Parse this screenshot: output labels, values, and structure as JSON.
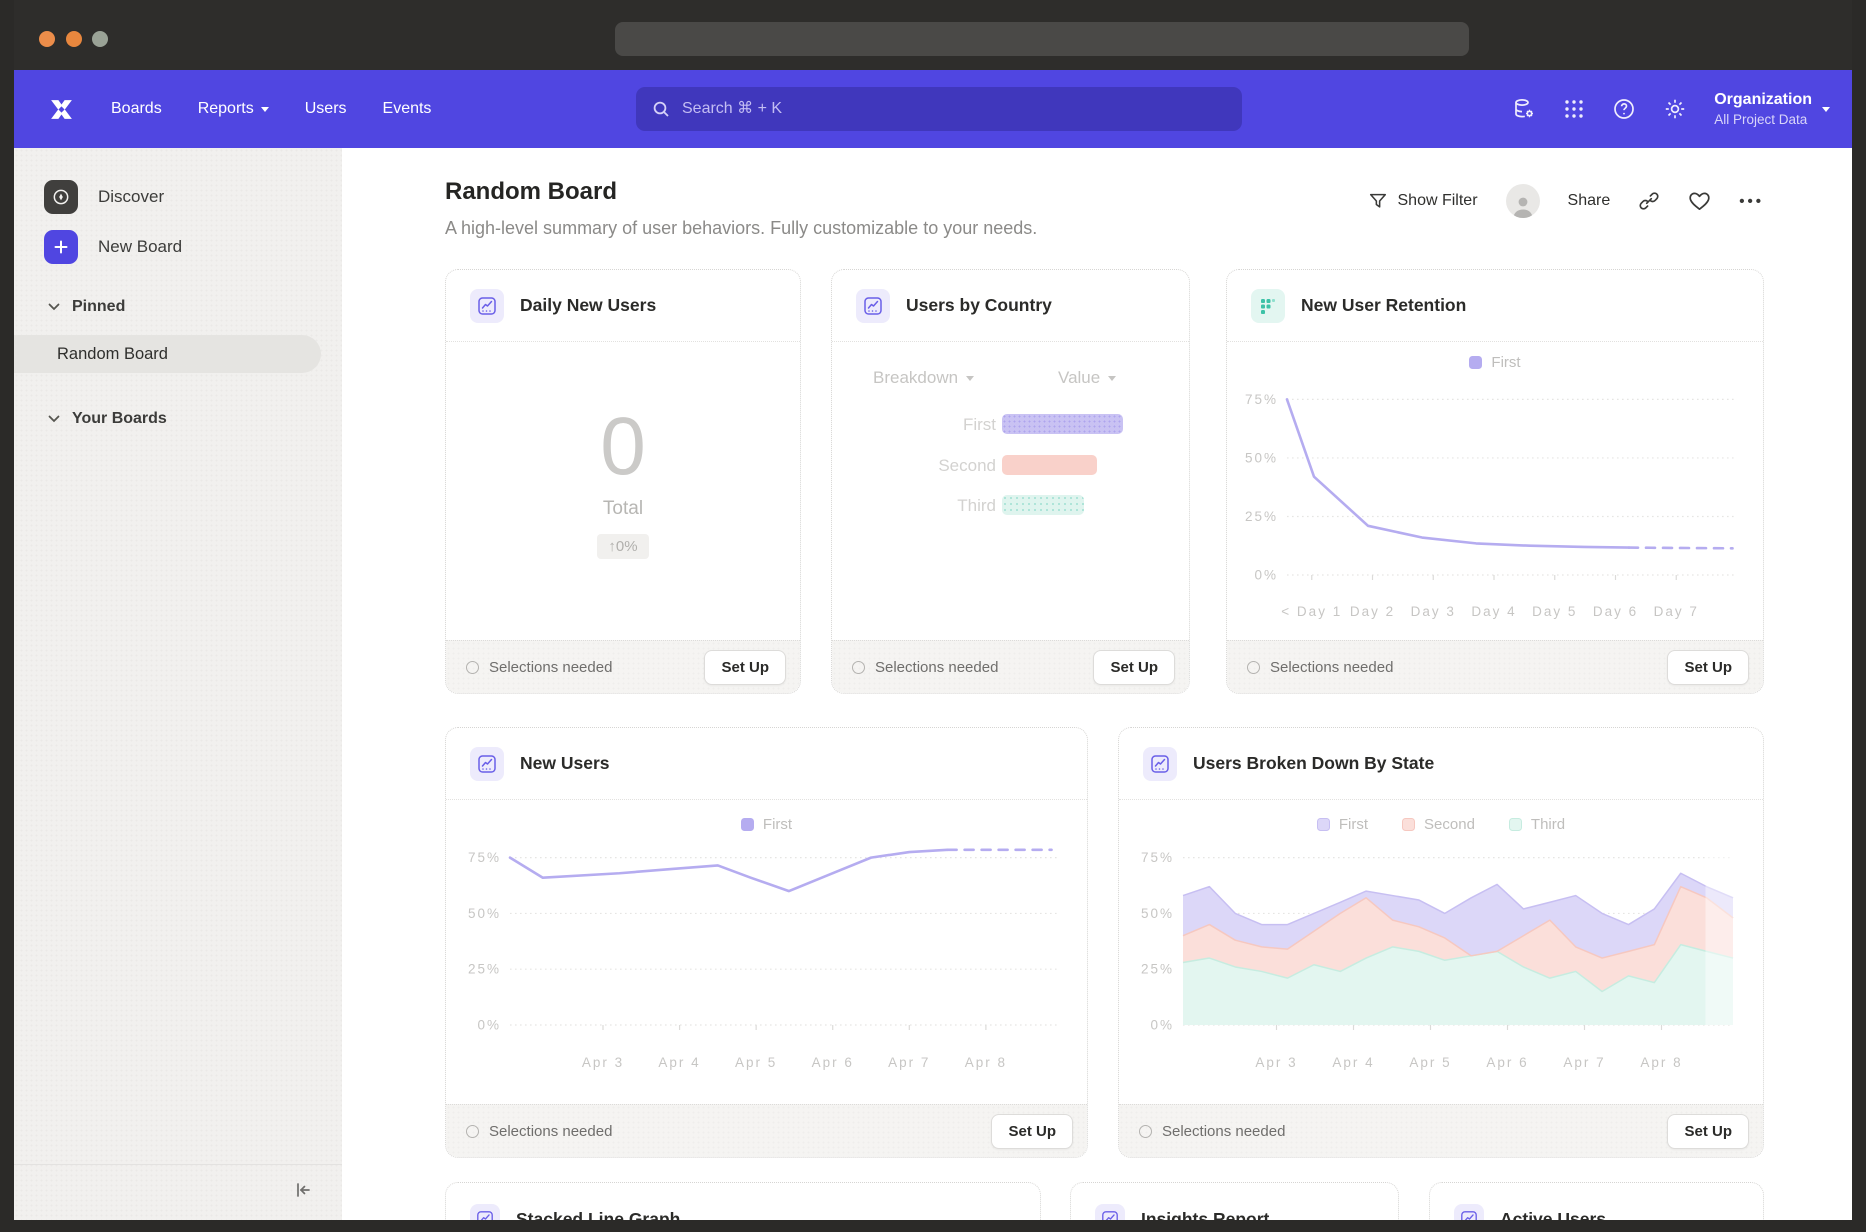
{
  "chrome": {
    "traffic_lights": [
      "#ec8d4a",
      "#e8873e",
      "#9aa296"
    ]
  },
  "nav": {
    "brand_color": "#5046e1",
    "items": [
      {
        "label": "Boards"
      },
      {
        "label": "Reports"
      },
      {
        "label": "Users"
      },
      {
        "label": "Events"
      }
    ],
    "search_placeholder": "Search ⌘ + K",
    "org": {
      "name": "Organization",
      "subtitle": "All Project Data"
    }
  },
  "sidebar": {
    "discover_label": "Discover",
    "new_board_label": "New Board",
    "pinned_label": "Pinned",
    "pinned_item": "Random Board",
    "your_boards_label": "Your Boards"
  },
  "board_header": {
    "title": "Random Board",
    "subtitle": "A high-level summary of user behaviors. Fully customizable to your needs.",
    "show_filter": "Show Filter",
    "share": "Share"
  },
  "card_footer": {
    "status": "Selections needed",
    "button": "Set Up"
  },
  "cards": {
    "daily_new_users": {
      "title": "Daily New Users",
      "value": "0",
      "value_label": "Total",
      "delta": "↑0%"
    },
    "users_by_country": {
      "title": "Users by Country",
      "dropdown_breakdown": "Breakdown",
      "dropdown_value": "Value"
    },
    "new_user_retention": {
      "title": "New User Retention"
    },
    "new_users": {
      "title": "New Users"
    },
    "users_by_state": {
      "title": "Users Broken Down By State"
    },
    "partials": [
      {
        "title": "Stacked Line Graph"
      },
      {
        "title": "Insights Report"
      },
      {
        "title": "Active Users"
      }
    ]
  },
  "chart_data": [
    {
      "id": "new_user_retention",
      "type": "line",
      "title": "New User Retention",
      "ylim": [
        0,
        82
      ],
      "yticks": [
        0,
        25,
        50,
        75
      ],
      "grid": "dotted horizontal",
      "legend_position": "top-center",
      "xticks": [
        {
          "p": 5.5,
          "label": "< Day 1"
        },
        {
          "p": 19,
          "label": "Day 2"
        },
        {
          "p": 32.5,
          "label": "Day 3"
        },
        {
          "p": 46,
          "label": "Day 4"
        },
        {
          "p": 59.5,
          "label": "Day 5"
        },
        {
          "p": 73,
          "label": "Day 6"
        },
        {
          "p": 86.5,
          "label": "Day 7"
        }
      ],
      "series": [
        {
          "name": "First",
          "color": "#b5acf0",
          "points": [
            [
              0,
              75
            ],
            [
              6,
              42
            ],
            [
              18,
              21
            ],
            [
              30,
              16
            ],
            [
              42,
              13.5
            ],
            [
              54,
              12.5
            ],
            [
              66,
              12
            ],
            [
              76,
              11.7
            ]
          ],
          "dash": [
            [
              76,
              11.7
            ],
            [
              99,
              11.4
            ]
          ]
        }
      ]
    },
    {
      "id": "new_users",
      "type": "line",
      "title": "New Users",
      "ylim": [
        0,
        82
      ],
      "yticks": [
        0,
        25,
        50,
        75
      ],
      "grid": "dotted horizontal",
      "legend_position": "top-center",
      "xticks": [
        {
          "p": 17,
          "label": "Apr 3"
        },
        {
          "p": 31,
          "label": "Apr 4"
        },
        {
          "p": 45,
          "label": "Apr 5"
        },
        {
          "p": 59,
          "label": "Apr 6"
        },
        {
          "p": 73,
          "label": "Apr 7"
        },
        {
          "p": 87,
          "label": "Apr 8"
        }
      ],
      "series": [
        {
          "name": "First",
          "color": "#b5acf0",
          "points": [
            [
              0,
              75
            ],
            [
              6,
              66
            ],
            [
              20,
              68
            ],
            [
              30,
              70
            ],
            [
              38,
              71.5
            ],
            [
              44,
              66
            ],
            [
              51,
              60
            ],
            [
              58,
              67
            ],
            [
              66,
              75
            ],
            [
              73,
              77.5
            ],
            [
              80,
              78.5
            ]
          ],
          "dash": [
            [
              80,
              78.5
            ],
            [
              99,
              78.5
            ]
          ]
        }
      ]
    },
    {
      "id": "users_broken_down_by_state",
      "type": "area-stacked",
      "title": "Users Broken Down By State",
      "ylim": [
        0,
        82
      ],
      "yticks": [
        0,
        25,
        50,
        75
      ],
      "grid": "dotted horizontal",
      "legend_position": "top-center",
      "fade_right_from": 95,
      "xticks": [
        {
          "p": 17,
          "label": "Apr 3"
        },
        {
          "p": 31,
          "label": "Apr 4"
        },
        {
          "p": 45,
          "label": "Apr 5"
        },
        {
          "p": 59,
          "label": "Apr 6"
        },
        {
          "p": 73,
          "label": "Apr 7"
        },
        {
          "p": 87,
          "label": "Apr 8"
        }
      ],
      "x": [
        0,
        4.8,
        9.5,
        14.3,
        19,
        23.8,
        28.6,
        33.3,
        38.1,
        42.9,
        47.6,
        52.4,
        57.1,
        61.9,
        66.7,
        71.4,
        76.2,
        81,
        85.7,
        90.5,
        95.2,
        100
      ],
      "series_bottom_up": [
        {
          "name": "Third",
          "fill": "#e3f6f0",
          "stroke": "#c6ece0",
          "values": [
            28,
            30,
            26,
            24,
            21,
            27,
            24,
            30,
            35,
            33,
            29,
            31,
            33,
            26,
            21,
            24,
            15,
            22,
            19,
            36,
            33,
            30
          ]
        },
        {
          "name": "Second",
          "fill": "#fbdfda",
          "stroke": "#f6c8c0",
          "values": [
            12,
            15,
            12,
            11,
            13,
            15,
            26,
            27,
            12,
            11,
            10,
            0,
            0,
            14,
            26,
            11,
            15,
            11,
            17,
            26,
            24,
            18
          ]
        },
        {
          "name": "First",
          "fill": "#dcd7f8",
          "stroke": "#c7bff2",
          "values": [
            18,
            17,
            12,
            10,
            11,
            8,
            5,
            3,
            11,
            12,
            11,
            26,
            30,
            12,
            8,
            23,
            20,
            12,
            16,
            6,
            5,
            9
          ]
        }
      ]
    },
    {
      "id": "users_by_country",
      "type": "bar",
      "orientation": "horizontal",
      "title": "Users by Country",
      "categories": [
        "First",
        "Second",
        "Third"
      ],
      "values": [
        121,
        95,
        82
      ],
      "colors": [
        "#c9c2f3",
        "#f9d1ca",
        "#dff4ee"
      ]
    }
  ]
}
